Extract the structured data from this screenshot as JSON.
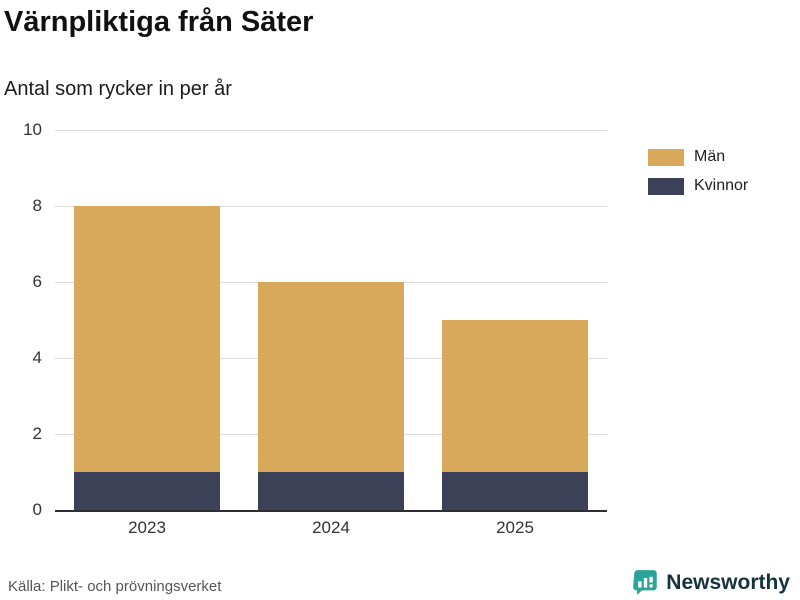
{
  "title": "Värnpliktiga från Säter",
  "subtitle": "Antal som rycker in per år",
  "source": "Källa: Plikt- och prövningsverket",
  "brand": {
    "name": "Newsworthy",
    "icon": "bar-chart-badge-icon",
    "icon_color": "#2aa496",
    "text_color": "#14333f"
  },
  "colors": {
    "man": "#d8a95a",
    "kvinnor": "#3d4157",
    "grid": "#dcdcdc",
    "axis": "#2e2e2e",
    "tick_text": "#333333"
  },
  "chart_data": {
    "type": "bar",
    "stacked": true,
    "categories": [
      "2023",
      "2024",
      "2025"
    ],
    "series": [
      {
        "name": "Män",
        "color": "#d8a95a",
        "values": [
          7,
          5,
          4
        ]
      },
      {
        "name": "Kvinnor",
        "color": "#3d4157",
        "values": [
          1,
          1,
          1
        ]
      }
    ],
    "totals": [
      8,
      6,
      5
    ],
    "title": "Värnpliktiga från Säter",
    "subtitle": "Antal som rycker in per år",
    "xlabel": "",
    "ylabel": "",
    "ylim": [
      0,
      10
    ],
    "yticks": [
      0,
      2,
      4,
      6,
      8,
      10
    ],
    "grid": true,
    "legend_position": "right"
  }
}
